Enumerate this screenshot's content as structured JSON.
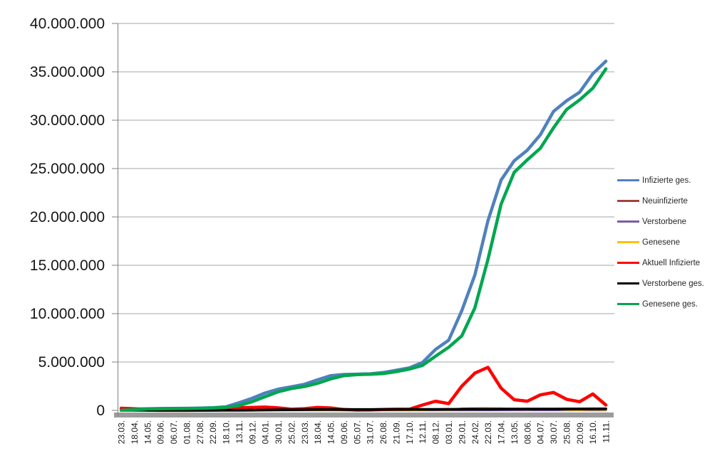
{
  "chart_data": {
    "type": "line",
    "title": "",
    "grid": "horizontal",
    "legend_position": "right",
    "y_range": [
      0,
      40000000
    ],
    "y_tick_labels": [
      "40.000.000",
      "35.000.000",
      "30.000.000",
      "25.000.000",
      "20.000.000",
      "15.000.000",
      "10.000.000",
      "5.000.000",
      "0"
    ],
    "x_tick_labels": [
      "23.03.",
      "18.04.",
      "14.05.",
      "09.06.",
      "06.07.",
      "01.08.",
      "27.08.",
      "22.09.",
      "18.10.",
      "13.11.",
      "09.12.",
      "04.01.",
      "30.01.",
      "25.02.",
      "23.03.",
      "18.04.",
      "14.05.",
      "09.06.",
      "05.07.",
      "31.07.",
      "26.08.",
      "21.09.",
      "17.10.",
      "12.11.",
      "08.12.",
      "03.01.",
      "29.01.",
      "24.02.",
      "22.03.",
      "17.04.",
      "13.05.",
      "08.06.",
      "04.07.",
      "30.07.",
      "25.08.",
      "20.09.",
      "16.10.",
      "11.11."
    ],
    "series": [
      {
        "name": "Infizierte ges.",
        "color": "#4F81BD",
        "values": [
          30000,
          150000,
          170000,
          190000,
          200000,
          210000,
          240000,
          280000,
          370000,
          790000,
          1250000,
          1800000,
          2200000,
          2440000,
          2700000,
          3160000,
          3590000,
          3710000,
          3740000,
          3780000,
          3910000,
          4150000,
          4400000,
          4950000,
          6300000,
          7250000,
          10300000,
          14000000,
          19600000,
          23800000,
          25800000,
          26900000,
          28500000,
          30900000,
          32000000,
          32900000,
          34800000,
          36100000
        ]
      },
      {
        "name": "Neuinfizierte",
        "color": "#A0453E",
        "values": [
          4000,
          2000,
          1000,
          500,
          500,
          1000,
          1500,
          2000,
          7000,
          23000,
          28000,
          12000,
          14000,
          8000,
          16000,
          24000,
          12000,
          3000,
          1000,
          2000,
          12000,
          7000,
          9000,
          48000,
          69000,
          30000,
          190000,
          210000,
          250000,
          165000,
          88000,
          60000,
          140000,
          100000,
          40000,
          45000,
          90000,
          40000
        ]
      },
      {
        "name": "Verstorbene",
        "color": "#7B5CA5",
        "values": [
          50,
          300,
          100,
          30,
          20,
          20,
          20,
          30,
          50,
          200,
          500,
          900,
          900,
          400,
          200,
          300,
          200,
          100,
          30,
          30,
          50,
          80,
          80,
          200,
          400,
          400,
          200,
          250,
          300,
          300,
          150,
          100,
          100,
          150,
          150,
          100,
          150,
          200
        ]
      },
      {
        "name": "Genesene",
        "color": "#FFC000",
        "values": [
          2000,
          3000,
          1500,
          1000,
          500,
          1000,
          1000,
          2000,
          4000,
          15000,
          25000,
          18000,
          15000,
          10000,
          12000,
          20000,
          17000,
          6000,
          2000,
          1500,
          8000,
          9000,
          8000,
          25000,
          55000,
          45000,
          110000,
          180000,
          240000,
          220000,
          120000,
          70000,
          110000,
          120000,
          60000,
          40000,
          80000,
          60000
        ]
      },
      {
        "name": "Aktuell Infizierte",
        "color": "#FF0000",
        "values": [
          220000,
          160000,
          30000,
          10000,
          8000,
          10000,
          20000,
          30000,
          60000,
          270000,
          300000,
          340000,
          260000,
          120000,
          180000,
          300000,
          250000,
          90000,
          30000,
          40000,
          90000,
          120000,
          120000,
          550000,
          950000,
          700000,
          2500000,
          3850000,
          4450000,
          2300000,
          1100000,
          950000,
          1600000,
          1850000,
          1150000,
          900000,
          1700000,
          550000
        ]
      },
      {
        "name": "Verstorbene ges.",
        "color": "#000000",
        "values": [
          400,
          4000,
          8000,
          8800,
          9000,
          9100,
          9300,
          9400,
          9800,
          12000,
          20000,
          35000,
          56000,
          69000,
          75000,
          81000,
          86000,
          89500,
          91000,
          91700,
          92000,
          93000,
          94600,
          97700,
          104000,
          112000,
          117500,
          121800,
          127500,
          133000,
          137000,
          139700,
          141500,
          142800,
          145500,
          148000,
          150800,
          155000
        ]
      },
      {
        "name": "Genesene ges.",
        "color": "#00A64F",
        "values": [
          10000,
          75000,
          150000,
          172000,
          186000,
          194000,
          216000,
          248000,
          310000,
          510000,
          900000,
          1430000,
          1930000,
          2260000,
          2470000,
          2800000,
          3260000,
          3590000,
          3700000,
          3730000,
          3800000,
          4010000,
          4270000,
          4650000,
          5600000,
          6520000,
          7700000,
          10600000,
          15600000,
          21300000,
          24600000,
          25900000,
          27100000,
          29200000,
          31100000,
          32100000,
          33300000,
          35300000
        ]
      }
    ]
  }
}
